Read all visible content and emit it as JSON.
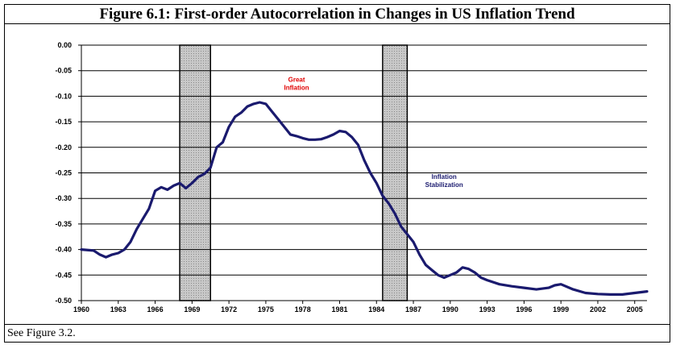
{
  "figure_title": "Figure 6.1:  First-order Autocorrelation in Changes in US Inflation Trend",
  "note": "See Figure 3.2.",
  "colors": {
    "line": "#1a1a6e",
    "great_inflation": "#e00000",
    "stabilization": "#1a1a6e",
    "shade": "#c8c8c8"
  },
  "chart_data": {
    "type": "line",
    "title": "Figure 6.1:  First-order Autocorrelation in Changes in US Inflation Trend",
    "xlabel": "",
    "ylabel": "",
    "xlim": [
      1960,
      2006
    ],
    "ylim": [
      -0.5,
      0.0
    ],
    "grid": true,
    "x_ticks": [
      "1960",
      "1963",
      "1966",
      "1969",
      "1972",
      "1975",
      "1978",
      "1981",
      "1984",
      "1987",
      "1990",
      "1993",
      "1996",
      "1999",
      "2002",
      "2005"
    ],
    "y_ticks": [
      "0.00",
      "-0.05",
      "-0.10",
      "-0.15",
      "-0.20",
      "-0.25",
      "-0.30",
      "-0.35",
      "-0.40",
      "-0.45",
      "-0.50"
    ],
    "shaded_periods": [
      [
        1968.0,
        1970.5
      ],
      [
        1984.5,
        1986.5
      ]
    ],
    "annotations": [
      {
        "lines": [
          "Great",
          "Inflation"
        ],
        "x": 1977.5,
        "y": -0.072,
        "color_key": "great_inflation"
      },
      {
        "lines": [
          "Inflation",
          "Stabilization"
        ],
        "x": 1989.5,
        "y": -0.262,
        "color_key": "stabilization"
      }
    ],
    "series": [
      {
        "x": [
          1960,
          1961,
          1961.5,
          1962,
          1962.5,
          1963,
          1963.5,
          1964,
          1964.5,
          1965,
          1965.5,
          1966,
          1966.5,
          1967,
          1967.5,
          1968,
          1968.5,
          1969,
          1969.5,
          1970,
          1970.5,
          1971,
          1971.5,
          1972,
          1972.5,
          1973,
          1973.5,
          1974,
          1974.5,
          1975,
          1975.5,
          1976,
          1976.5,
          1977,
          1977.5,
          1978,
          1978.5,
          1979,
          1979.5,
          1980,
          1980.5,
          1981,
          1981.5,
          1982,
          1982.5,
          1983,
          1983.5,
          1984,
          1984.5,
          1985,
          1985.5,
          1986,
          1986.5,
          1987,
          1987.5,
          1988,
          1988.5,
          1989,
          1989.5,
          1990,
          1990.5,
          1991,
          1991.5,
          1992,
          1992.5,
          1993,
          1994,
          1995,
          1996,
          1997,
          1998,
          1998.5,
          1999,
          2000,
          2001,
          2002,
          2003,
          2004,
          2005,
          2006
        ],
        "y": [
          -0.4,
          -0.402,
          -0.41,
          -0.415,
          -0.41,
          -0.407,
          -0.4,
          -0.385,
          -0.36,
          -0.34,
          -0.32,
          -0.285,
          -0.278,
          -0.283,
          -0.275,
          -0.27,
          -0.28,
          -0.27,
          -0.258,
          -0.252,
          -0.24,
          -0.2,
          -0.19,
          -0.16,
          -0.14,
          -0.132,
          -0.12,
          -0.115,
          -0.112,
          -0.115,
          -0.13,
          -0.145,
          -0.16,
          -0.175,
          -0.178,
          -0.182,
          -0.185,
          -0.185,
          -0.184,
          -0.18,
          -0.175,
          -0.168,
          -0.17,
          -0.18,
          -0.195,
          -0.225,
          -0.25,
          -0.27,
          -0.295,
          -0.31,
          -0.33,
          -0.355,
          -0.37,
          -0.385,
          -0.41,
          -0.43,
          -0.44,
          -0.45,
          -0.455,
          -0.45,
          -0.445,
          -0.435,
          -0.438,
          -0.445,
          -0.455,
          -0.46,
          -0.468,
          -0.472,
          -0.475,
          -0.478,
          -0.475,
          -0.47,
          -0.468,
          -0.478,
          -0.485,
          -0.487,
          -0.488,
          -0.488,
          -0.485,
          -0.482
        ]
      }
    ]
  }
}
